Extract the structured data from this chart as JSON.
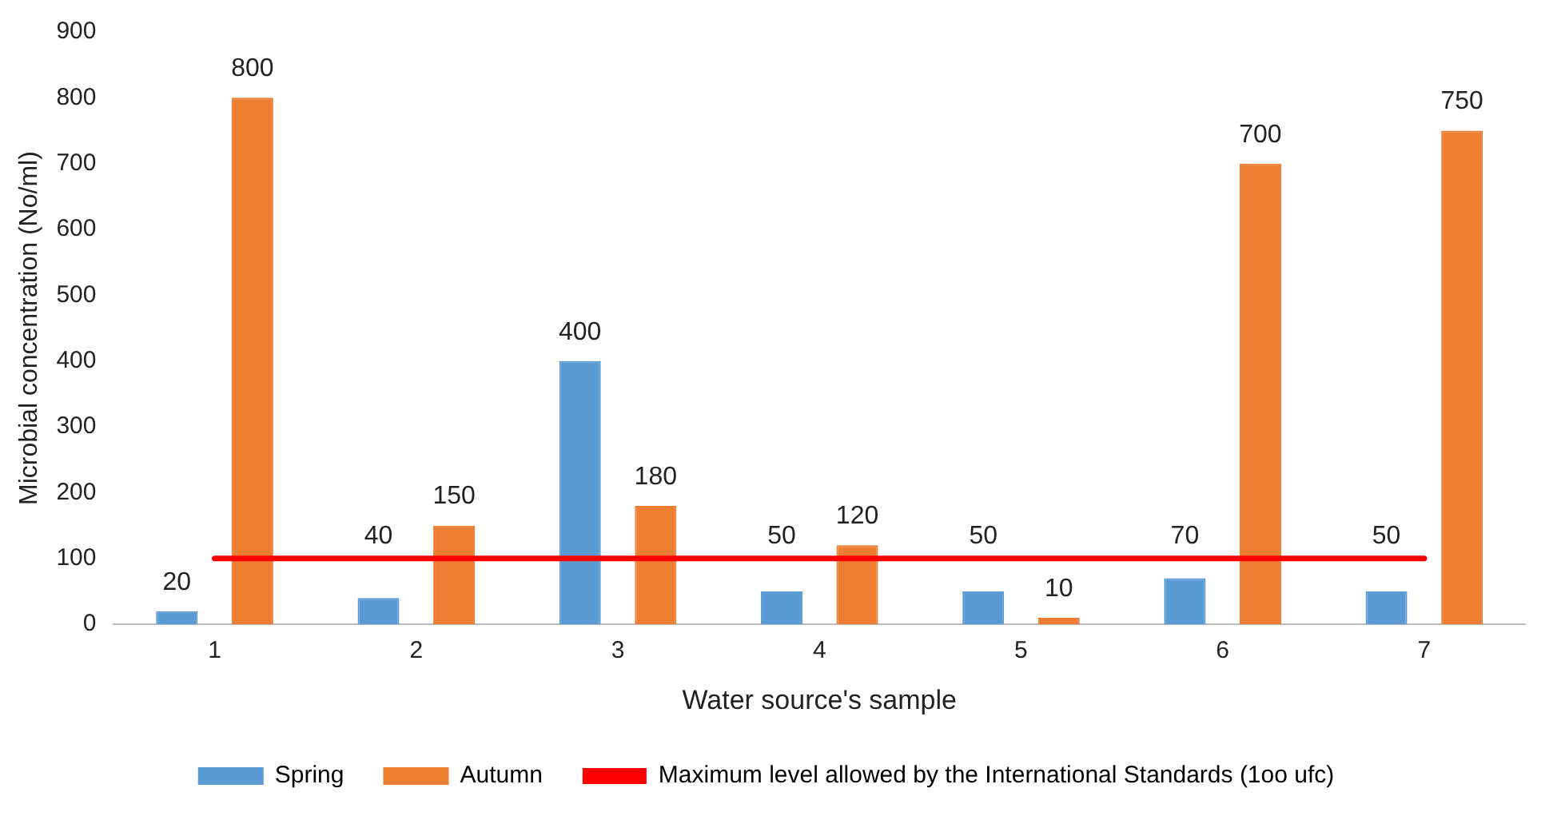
{
  "chart_data": {
    "type": "bar",
    "xlabel": "Water source's sample",
    "ylabel": "Microbial concentration (No/ml)",
    "categories": [
      "1",
      "2",
      "3",
      "4",
      "5",
      "6",
      "7"
    ],
    "series": [
      {
        "name": "Spring",
        "color": "#5b9bd5",
        "values": [
          20,
          40,
          400,
          50,
          50,
          70,
          50
        ]
      },
      {
        "name": "Autumn",
        "color": "#ed7d31",
        "values": [
          800,
          150,
          180,
          120,
          10,
          700,
          750
        ]
      }
    ],
    "ylim": [
      0,
      900
    ],
    "yticks": [
      0,
      100,
      200,
      300,
      400,
      500,
      600,
      700,
      800,
      900
    ],
    "grid": false,
    "legend": "bottom",
    "data_labels": true,
    "ref_lines": [
      {
        "axis": "y",
        "value": 100,
        "label": "Maximum level allowed by the International Standards (1oo ufc)",
        "color": "#ff0000",
        "line_style": "solid"
      }
    ]
  }
}
